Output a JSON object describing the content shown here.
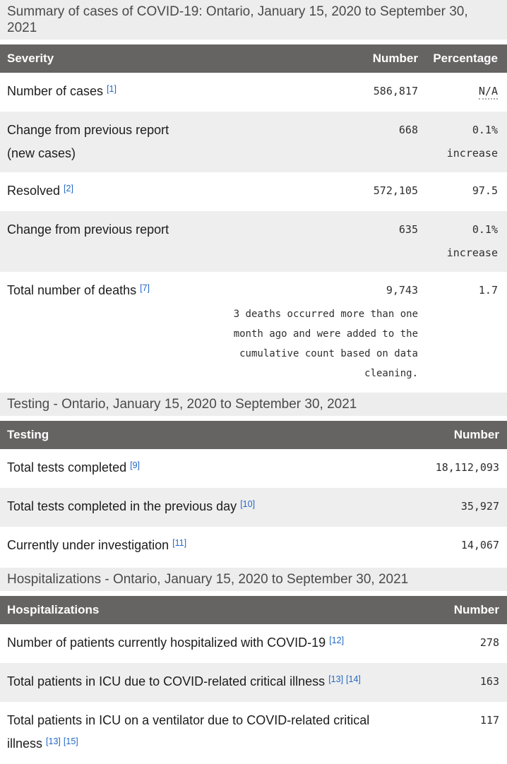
{
  "colors": {
    "header_bg": "#666363",
    "caption_bg": "#ededed",
    "stripe_bg": "#eeeeee",
    "link_blue": "#2268c4",
    "caption_text": "#4a4a4a"
  },
  "tables": [
    {
      "caption": "Summary of cases of COVID-19: Ontario, January 15, 2020 to September 30, 2021",
      "columns": [
        {
          "label": "Severity",
          "align": "left"
        },
        {
          "label": "Number",
          "align": "right"
        },
        {
          "label": "Percentage",
          "align": "right"
        }
      ],
      "rows": [
        {
          "cells": [
            {
              "text": "Number of cases",
              "refs": [
                "[1]"
              ]
            },
            {
              "text": "586,817"
            },
            {
              "text": "N/A",
              "dotted_underline": true
            }
          ]
        },
        {
          "cells": [
            {
              "text": "Change from previous report (new cases)"
            },
            {
              "text": "668"
            },
            {
              "text": "0.1% increase"
            }
          ]
        },
        {
          "cells": [
            {
              "text": "Resolved",
              "refs": [
                "[2]"
              ]
            },
            {
              "text": "572,105"
            },
            {
              "text": "97.5"
            }
          ]
        },
        {
          "cells": [
            {
              "text": "Change from previous report"
            },
            {
              "text": "635"
            },
            {
              "text": "0.1% increase"
            }
          ]
        },
        {
          "cells": [
            {
              "text": "Total number of deaths",
              "refs": [
                "[7]"
              ]
            },
            {
              "text": "9,743",
              "note": "3 deaths occurred more than one month ago and were added to the cumulative count based on data cleaning."
            },
            {
              "text": "1.7"
            }
          ]
        }
      ]
    },
    {
      "caption": "Testing - Ontario, January 15, 2020 to September 30, 2021",
      "columns": [
        {
          "label": "Testing",
          "align": "left"
        },
        {
          "label": "Number",
          "align": "right"
        }
      ],
      "rows": [
        {
          "cells": [
            {
              "text": "Total tests completed",
              "refs": [
                "[9]"
              ]
            },
            {
              "text": "18,112,093"
            }
          ]
        },
        {
          "cells": [
            {
              "text": "Total tests completed in the previous day",
              "refs": [
                "[10]"
              ]
            },
            {
              "text": "35,927"
            }
          ]
        },
        {
          "cells": [
            {
              "text": "Currently under investigation",
              "refs": [
                "[11]"
              ]
            },
            {
              "text": "14,067"
            }
          ]
        }
      ]
    },
    {
      "caption": "Hospitalizations - Ontario, January 15, 2020 to September 30, 2021",
      "columns": [
        {
          "label": "Hospitalizations",
          "align": "left"
        },
        {
          "label": "Number",
          "align": "right"
        }
      ],
      "rows": [
        {
          "cells": [
            {
              "text": "Number of patients currently hospitalized with COVID-19",
              "refs": [
                "[12]"
              ]
            },
            {
              "text": "278"
            }
          ]
        },
        {
          "cells": [
            {
              "text": "Total patients in ICU due to COVID-related critical illness",
              "refs": [
                "[13]",
                "[14]"
              ]
            },
            {
              "text": "163"
            }
          ]
        },
        {
          "cells": [
            {
              "text": "Total patients in ICU on a ventilator due to COVID-related critical illness",
              "refs": [
                "[13]",
                "[15]"
              ]
            },
            {
              "text": "117"
            }
          ]
        }
      ]
    }
  ]
}
